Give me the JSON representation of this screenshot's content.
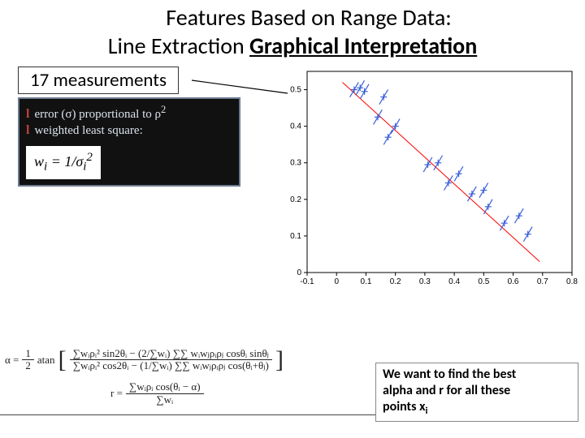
{
  "title": {
    "line1": "Features Based on Range Data:",
    "line2_prefix": "Line Extraction ",
    "line2_emph": "Graphical Interpretation"
  },
  "measurements_label": "17 measurements",
  "notes": {
    "bullet_glyph": "l",
    "line1_a": "error (",
    "line1_sigma": "σ",
    "line1_b": ") proportional to ",
    "line1_rho": "ρ",
    "line1_sup": "2",
    "line2": "weighted least square:",
    "formula_lhs": "w",
    "formula_sub": "i",
    "formula_mid": " = 1/",
    "formula_sigma": "σ",
    "formula_sigsub": "i",
    "formula_sigsup": "2"
  },
  "chart": {
    "xlim": [
      -0.1,
      0.8
    ],
    "ylim": [
      0.0,
      0.55
    ],
    "xticks": [
      -0.1,
      0,
      0.1,
      0.2,
      0.3,
      0.4,
      0.5,
      0.6,
      0.7,
      0.8
    ],
    "yticks": [
      0,
      0.1,
      0.2,
      0.3,
      0.4,
      0.5
    ],
    "xtick_labels": [
      "-0.1",
      "0",
      "0.1",
      "0.2",
      "0.3",
      "0.4",
      "0.5",
      "0.6",
      "0.7",
      "0.8"
    ],
    "ytick_labels": [
      "0",
      "0.1",
      "0.2",
      "0.3",
      "0.4",
      "0.5"
    ],
    "background_color": "#ffffff",
    "axis_color": "#000000",
    "tick_fontsize": 10,
    "line": {
      "x0": 0.02,
      "y0": 0.52,
      "x1": 0.69,
      "y1": 0.03,
      "color": "#ff0000",
      "width": 1
    },
    "points": {
      "color": "#3a5fd9",
      "marker_size": 4,
      "bar_len": 0.025,
      "data": [
        {
          "x": 0.06,
          "y": 0.5
        },
        {
          "x": 0.08,
          "y": 0.505
        },
        {
          "x": 0.095,
          "y": 0.495
        },
        {
          "x": 0.16,
          "y": 0.48
        },
        {
          "x": 0.14,
          "y": 0.425
        },
        {
          "x": 0.2,
          "y": 0.4
        },
        {
          "x": 0.175,
          "y": 0.37
        },
        {
          "x": 0.31,
          "y": 0.295
        },
        {
          "x": 0.345,
          "y": 0.3
        },
        {
          "x": 0.38,
          "y": 0.245
        },
        {
          "x": 0.415,
          "y": 0.27
        },
        {
          "x": 0.46,
          "y": 0.215
        },
        {
          "x": 0.5,
          "y": 0.225
        },
        {
          "x": 0.515,
          "y": 0.18
        },
        {
          "x": 0.57,
          "y": 0.135
        },
        {
          "x": 0.62,
          "y": 0.155
        },
        {
          "x": 0.65,
          "y": 0.105
        }
      ]
    }
  },
  "alpha_formula": {
    "lhs": "α = ",
    "half": "½",
    "atan": " atan",
    "num": "∑wᵢρᵢ² sin2θᵢ − (2/∑wᵢ) ∑∑ wᵢwⱼρᵢρⱼ cosθᵢ sinθⱼ",
    "den": "∑wᵢρᵢ² cos2θᵢ − (1/∑wᵢ) ∑∑ wᵢwⱼρᵢρⱼ cos(θᵢ+θⱼ)"
  },
  "r_formula": {
    "lhs": "r = ",
    "num": "∑wᵢρᵢ cos(θᵢ − α)",
    "den": "∑wᵢ"
  },
  "goal": {
    "l1": "We want to find the best",
    "l2": "alpha and r for all these",
    "l3_a": "points x",
    "l3_sub": "i"
  }
}
